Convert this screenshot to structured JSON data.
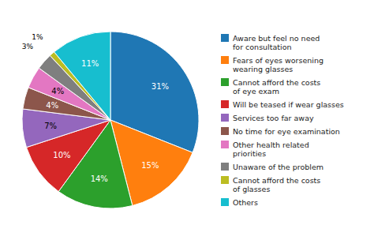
{
  "chart_data": {
    "type": "pie",
    "categories": [
      "Aware but feel no need\nfor consultation",
      "Fears of eyes worsening\nwearing glasses",
      "Cannot afford the costs\nof eye exam",
      "Will be teased if wear glasses",
      "Services too far away",
      "No time for eye examination",
      "Other health related\npriorities",
      "Unaware of the problem",
      "Cannot afford the costs\nof glasses",
      "Others"
    ],
    "values": [
      31,
      15,
      14,
      10,
      7,
      4,
      4,
      3,
      1,
      11
    ],
    "value_labels": [
      "31%",
      "15%",
      "14%",
      "10%",
      "7%",
      "4%",
      "4%",
      "3%",
      "1%",
      "11%"
    ],
    "data_labels": true,
    "legend": "right"
  }
}
